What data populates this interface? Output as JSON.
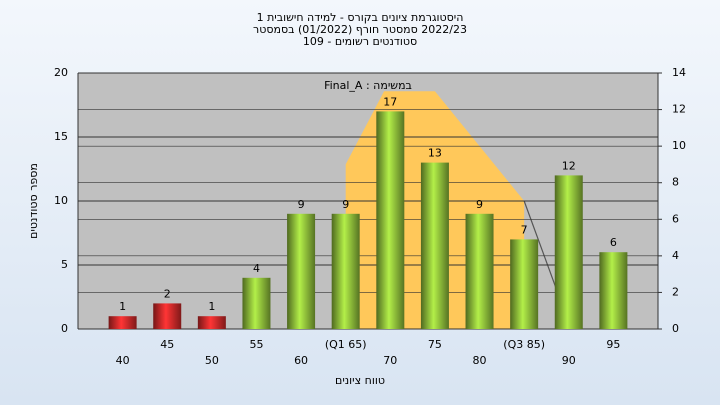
{
  "chart_data": {
    "type": "bar",
    "title": [
      "היסטוגרמת ציונים בקורס - למידה חישובית 1",
      "2022/23 סמסטר חורף (01/2022) בסמסטר",
      "סטודנטים רשומים - 109"
    ],
    "annotation": "במשימה : Final_A",
    "x_label": "טווח ציונים",
    "y_label": "מספר סטודנטים",
    "categories": [
      "40",
      "45",
      "50",
      "55",
      "60",
      "(Q1 65)",
      "70",
      "75",
      "80",
      "(Q3 85)",
      "90",
      "95"
    ],
    "values": [
      1,
      2,
      1,
      4,
      9,
      9,
      17,
      13,
      9,
      7,
      12,
      6
    ],
    "colors": [
      "#d42a2a",
      "#d42a2a",
      "#d42a2a",
      "#8fbf3a",
      "#8fbf3a",
      "#8fbf3a",
      "#8fbf3a",
      "#8fbf3a",
      "#8fbf3a",
      "#8fbf3a",
      "#8fbf3a",
      "#8fbf3a"
    ],
    "ylim": [
      0,
      20
    ],
    "yticks": [
      0,
      5,
      10,
      15,
      20
    ],
    "y2lim": [
      0,
      14
    ],
    "y2ticks": [
      0,
      2,
      4,
      6,
      8,
      10,
      12,
      14
    ],
    "x_scores": [
      40,
      45,
      50,
      55,
      60,
      65,
      70,
      75,
      80,
      85,
      90,
      95
    ],
    "area": {
      "color": "#ffc85a",
      "axis": "y2",
      "x": [
        65,
        69.3,
        75,
        85,
        85,
        65
      ],
      "values": [
        9,
        13,
        13,
        7,
        0,
        0
      ]
    },
    "line": {
      "color": "#555555",
      "axis": "y2",
      "x": [
        85,
        88.6
      ],
      "values": [
        7,
        2.2
      ]
    },
    "grid": true
  }
}
